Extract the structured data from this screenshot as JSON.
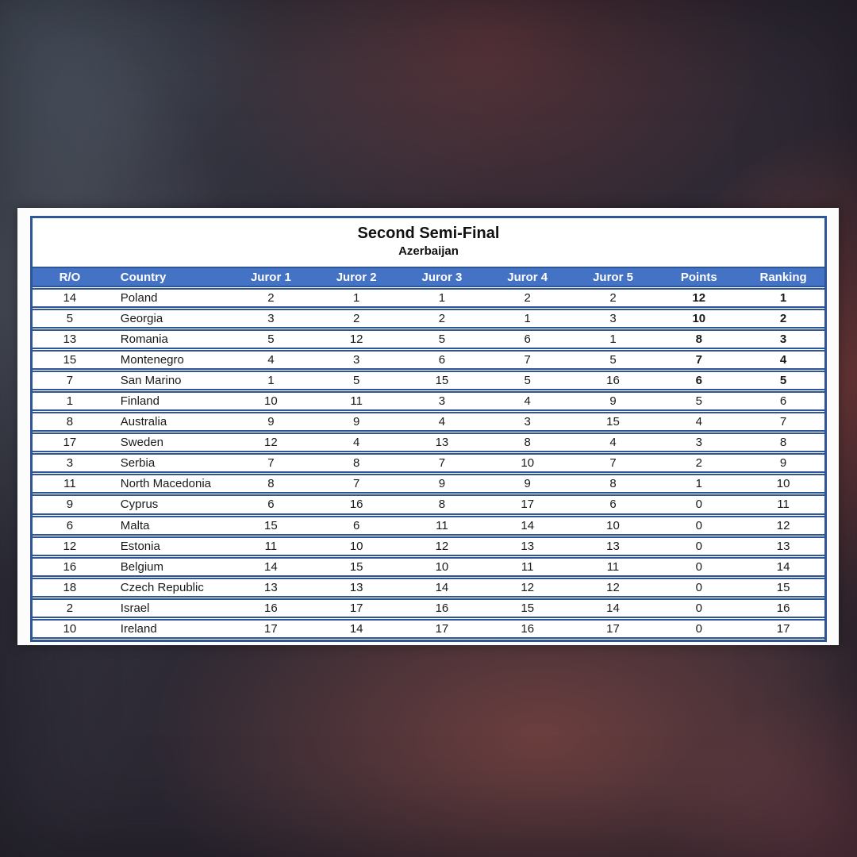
{
  "header": {
    "title": "Second Semi-Final",
    "subtitle": "Azerbaijan"
  },
  "colors": {
    "header_bg": "#4472C4",
    "border_blue": "#2E5697",
    "highlight_red": "#C1232B",
    "text_black": "#1a1a1a"
  },
  "table": {
    "columns": [
      "R/O",
      "Country",
      "Juror 1",
      "Juror 2",
      "Juror 3",
      "Juror 4",
      "Juror 5",
      "Points",
      "Ranking"
    ],
    "column_widths_pct": [
      9.4,
      15.3,
      10.8,
      10.8,
      10.8,
      10.8,
      10.8,
      10.9,
      10.4
    ],
    "rows": [
      {
        "ro": "14",
        "country": "Poland",
        "jurors": [
          "2",
          "1",
          "1",
          "2",
          "2"
        ],
        "points": "12",
        "ranking": "1",
        "highlight": true
      },
      {
        "ro": "5",
        "country": "Georgia",
        "jurors": [
          "3",
          "2",
          "2",
          "1",
          "3"
        ],
        "points": "10",
        "ranking": "2",
        "highlight": true
      },
      {
        "ro": "13",
        "country": "Romania",
        "jurors": [
          "5",
          "12",
          "5",
          "6",
          "1"
        ],
        "points": "8",
        "ranking": "3",
        "highlight": true
      },
      {
        "ro": "15",
        "country": "Montenegro",
        "jurors": [
          "4",
          "3",
          "6",
          "7",
          "5"
        ],
        "points": "7",
        "ranking": "4",
        "highlight": true
      },
      {
        "ro": "7",
        "country": "San Marino",
        "jurors": [
          "1",
          "5",
          "15",
          "5",
          "16"
        ],
        "points": "6",
        "ranking": "5",
        "highlight": true
      },
      {
        "ro": "1",
        "country": "Finland",
        "jurors": [
          "10",
          "11",
          "3",
          "4",
          "9"
        ],
        "points": "5",
        "ranking": "6",
        "highlight": false
      },
      {
        "ro": "8",
        "country": "Australia",
        "jurors": [
          "9",
          "9",
          "4",
          "3",
          "15"
        ],
        "points": "4",
        "ranking": "7",
        "highlight": false
      },
      {
        "ro": "17",
        "country": "Sweden",
        "jurors": [
          "12",
          "4",
          "13",
          "8",
          "4"
        ],
        "points": "3",
        "ranking": "8",
        "highlight": false
      },
      {
        "ro": "3",
        "country": "Serbia",
        "jurors": [
          "7",
          "8",
          "7",
          "10",
          "7"
        ],
        "points": "2",
        "ranking": "9",
        "highlight": false
      },
      {
        "ro": "11",
        "country": "North Macedonia",
        "jurors": [
          "8",
          "7",
          "9",
          "9",
          "8"
        ],
        "points": "1",
        "ranking": "10",
        "highlight": false
      },
      {
        "ro": "9",
        "country": "Cyprus",
        "jurors": [
          "6",
          "16",
          "8",
          "17",
          "6"
        ],
        "points": "0",
        "ranking": "11",
        "highlight": false
      },
      {
        "ro": "6",
        "country": "Malta",
        "jurors": [
          "15",
          "6",
          "11",
          "14",
          "10"
        ],
        "points": "0",
        "ranking": "12",
        "highlight": false
      },
      {
        "ro": "12",
        "country": "Estonia",
        "jurors": [
          "11",
          "10",
          "12",
          "13",
          "13"
        ],
        "points": "0",
        "ranking": "13",
        "highlight": false
      },
      {
        "ro": "16",
        "country": "Belgium",
        "jurors": [
          "14",
          "15",
          "10",
          "11",
          "11"
        ],
        "points": "0",
        "ranking": "14",
        "highlight": false
      },
      {
        "ro": "18",
        "country": "Czech Republic",
        "jurors": [
          "13",
          "13",
          "14",
          "12",
          "12"
        ],
        "points": "0",
        "ranking": "15",
        "highlight": false
      },
      {
        "ro": "2",
        "country": "Israel",
        "jurors": [
          "16",
          "17",
          "16",
          "15",
          "14"
        ],
        "points": "0",
        "ranking": "16",
        "highlight": false
      },
      {
        "ro": "10",
        "country": "Ireland",
        "jurors": [
          "17",
          "14",
          "17",
          "16",
          "17"
        ],
        "points": "0",
        "ranking": "17",
        "highlight": false
      }
    ]
  }
}
